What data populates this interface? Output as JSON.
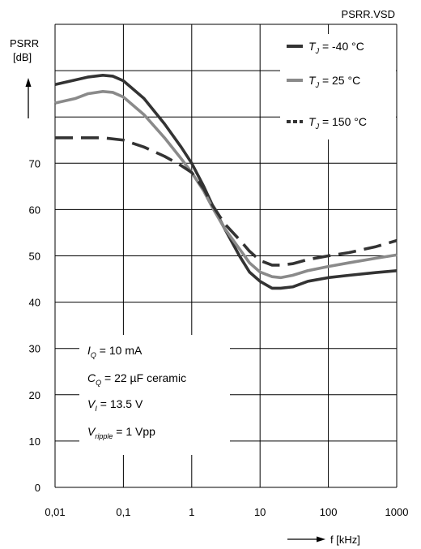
{
  "chart_data": {
    "type": "line",
    "title": "",
    "file_label": "PSRR.VSD",
    "ylabel_line1": "PSRR",
    "ylabel_line2": "[dB]",
    "xlabel": "f [kHz]",
    "x_scale": "log",
    "xlim": [
      0.01,
      1000
    ],
    "ylim": [
      0,
      100
    ],
    "grid": true,
    "legend_position": "top-right",
    "x_tick_labels": [
      "0,01",
      "0,1",
      "1",
      "10",
      "100",
      "1000"
    ],
    "x_tick_values": [
      0.01,
      0.1,
      1,
      10,
      100,
      1000
    ],
    "y_tick_values": [
      0,
      10,
      20,
      30,
      40,
      50,
      60,
      70
    ],
    "series": [
      {
        "name_sym": "T",
        "name_sub": "J",
        "name_rest": " = -40 °C",
        "color": "#333333",
        "dash": "solid",
        "x": [
          0.01,
          0.02,
          0.03,
          0.05,
          0.07,
          0.1,
          0.2,
          0.4,
          0.7,
          1,
          1.5,
          2,
          3,
          5,
          7,
          10,
          15,
          20,
          30,
          50,
          100,
          200,
          500,
          1000
        ],
        "y": [
          87,
          88,
          88.6,
          89,
          88.8,
          87.8,
          84,
          78.5,
          73.5,
          70,
          65,
          61,
          56,
          50,
          46.5,
          44.5,
          43,
          43,
          43.3,
          44.5,
          45.3,
          45.8,
          46.4,
          46.8
        ]
      },
      {
        "name_sym": "T",
        "name_sub": "J",
        "name_rest": " = 25 °C",
        "color": "#8a8a8a",
        "dash": "solid",
        "x": [
          0.01,
          0.02,
          0.03,
          0.05,
          0.07,
          0.1,
          0.2,
          0.4,
          0.7,
          1,
          1.5,
          2,
          3,
          5,
          7,
          10,
          15,
          20,
          30,
          50,
          100,
          200,
          500,
          1000
        ],
        "y": [
          83,
          84,
          85,
          85.5,
          85.3,
          84.3,
          80.5,
          75.5,
          71,
          68,
          64,
          60.5,
          56,
          51.5,
          48.5,
          46.5,
          45.5,
          45.3,
          45.8,
          46.8,
          47.7,
          48.5,
          49.5,
          50.2
        ]
      },
      {
        "name_sym": "T",
        "name_sub": "J",
        "name_rest": " = 150 °C",
        "color": "#333333",
        "dash": "dashed",
        "x": [
          0.01,
          0.02,
          0.05,
          0.1,
          0.2,
          0.4,
          0.7,
          1,
          1.5,
          2,
          3,
          5,
          7,
          10,
          15,
          20,
          30,
          50,
          100,
          200,
          500,
          1000
        ],
        "y": [
          75.5,
          75.5,
          75.5,
          75,
          73.5,
          71.5,
          69.5,
          68,
          64.5,
          61,
          57,
          53.5,
          51,
          49,
          48,
          48,
          48.3,
          49.2,
          50,
          50.7,
          52,
          53.3
        ]
      }
    ],
    "annotations": [
      {
        "sym": "I",
        "sub": "Q",
        "rest": " = 10 mA"
      },
      {
        "sym": "C",
        "sub": "Q",
        "rest": " = 22 µF   ceramic"
      },
      {
        "sym": "V",
        "sub": "I",
        "rest": "  = 13.5 V"
      },
      {
        "sym": "V",
        "sub": "ripple",
        "rest": "  = 1 Vpp"
      }
    ]
  }
}
